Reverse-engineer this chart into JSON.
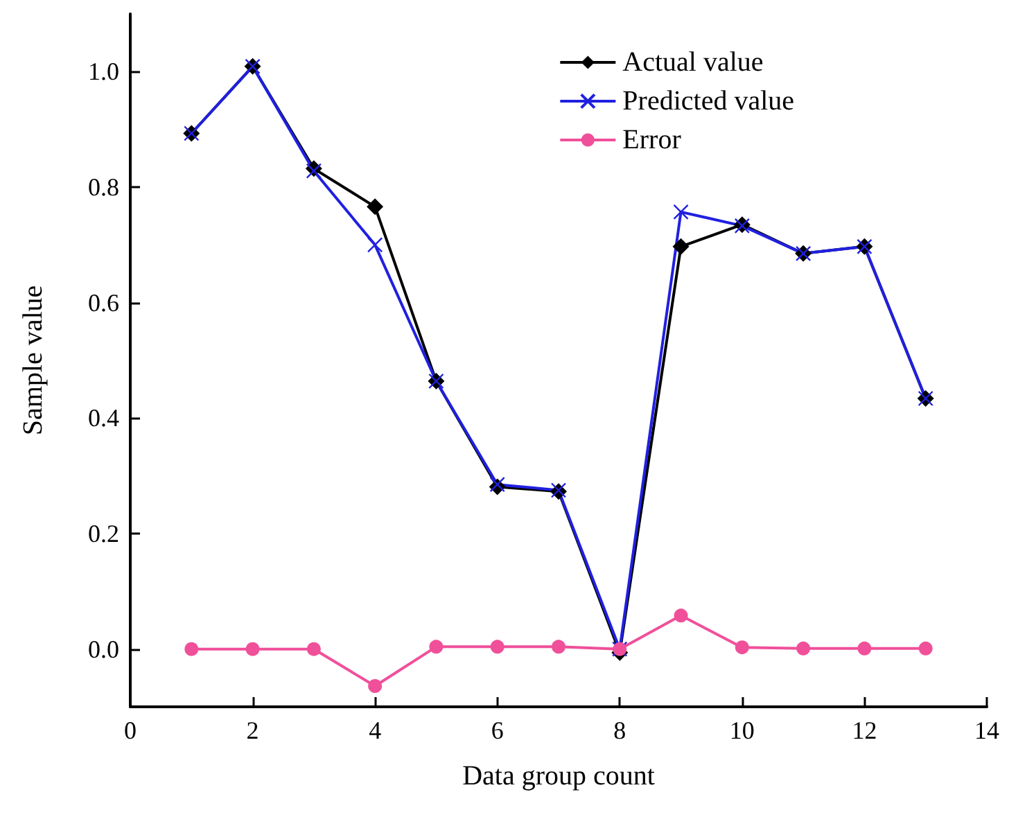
{
  "chart_data": {
    "type": "line",
    "xlabel": "Data group count",
    "ylabel": "Sample value",
    "x": [
      1,
      2,
      3,
      4,
      5,
      6,
      7,
      8,
      9,
      10,
      11,
      12,
      13
    ],
    "series": [
      {
        "name": "Actual value",
        "color": "#000000",
        "marker": "diamond",
        "values": [
          0.893,
          1.009,
          0.832,
          0.766,
          0.464,
          0.281,
          0.273,
          -0.006,
          0.697,
          0.735,
          0.685,
          0.697,
          0.434
        ]
      },
      {
        "name": "Predicted value",
        "color": "#2020e0",
        "marker": "cross",
        "values": [
          0.893,
          1.009,
          0.828,
          0.7,
          0.464,
          0.285,
          0.275,
          0.0,
          0.757,
          0.733,
          0.685,
          0.697,
          0.434
        ]
      },
      {
        "name": "Error",
        "color": "#f0509a",
        "marker": "circle",
        "values": [
          0.0,
          0.0,
          0.0,
          -0.064,
          0.004,
          0.004,
          0.004,
          0.0,
          0.058,
          0.003,
          0.001,
          0.001,
          0.001
        ]
      }
    ],
    "xlim": [
      0,
      14
    ],
    "xticks": [
      0,
      2,
      4,
      6,
      8,
      10,
      12,
      14
    ],
    "ylim": [
      -0.1,
      1.1
    ],
    "yticks": [
      {
        "value": 0,
        "label": "0.0"
      },
      {
        "value": 0.2,
        "label": "0.2"
      },
      {
        "value": 0.4,
        "label": "0.4"
      },
      {
        "value": 0.6,
        "label": "0.6"
      },
      {
        "value": 0.8,
        "label": "0.8"
      },
      {
        "value": 1.0,
        "label": "1.0"
      }
    ],
    "grid": false,
    "legend": "top right",
    "line_style": "solid"
  }
}
